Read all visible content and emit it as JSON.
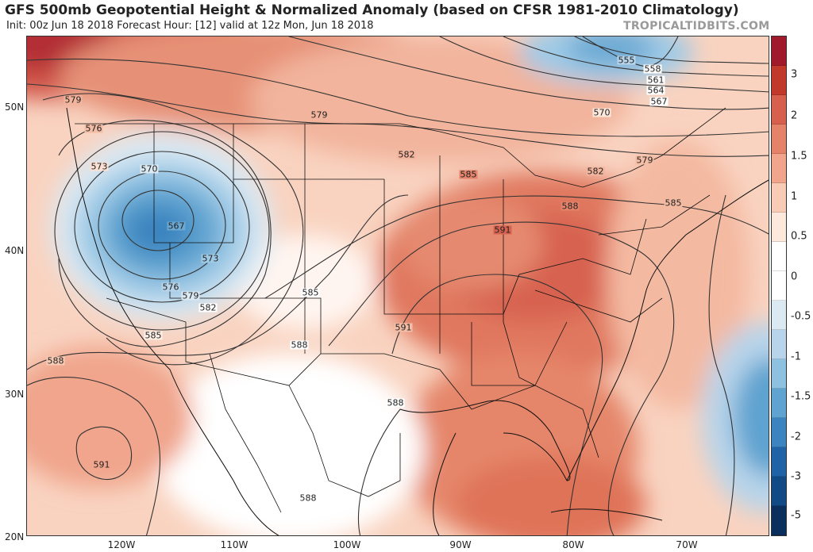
{
  "title": "GFS 500mb Geopotential Height & Normalized Anomaly (based on CFSR 1981-2010 Climatology)",
  "subtitle": "Init: 00z Jun 18 2018   Forecast Hour: [12]   valid at 12z Mon, Jun 18 2018",
  "site": "TROPICALTIDBITS.COM",
  "lat_labels": [
    "50N",
    "40N",
    "30N",
    "20N"
  ],
  "lon_labels": [
    "120W",
    "110W",
    "100W",
    "90W",
    "80W",
    "70W"
  ],
  "colorbar": {
    "labels": [
      "3",
      "2",
      "1.5",
      "1",
      "0.5",
      "0",
      "-0.5",
      "-1",
      "-1.5",
      "-2",
      "-3",
      "-5"
    ],
    "colors": [
      "#a11a2b",
      "#c0392b",
      "#d6604d",
      "#e4826a",
      "#f0a58c",
      "#f8cbb5",
      "#fde8dc",
      "#ffffff",
      "#ffffff",
      "#dbe9f3",
      "#b7d4ea",
      "#8ec0e0",
      "#5fa3d0",
      "#3b84bf",
      "#1f63a6",
      "#124a86",
      "#0a2f5c"
    ]
  },
  "contour_labels": [
    "579",
    "576",
    "573",
    "570",
    "567",
    "573",
    "576",
    "579",
    "582",
    "585",
    "588",
    "591",
    "579",
    "582",
    "585",
    "585",
    "588",
    "591",
    "585",
    "588",
    "591",
    "588",
    "582",
    "579",
    "570",
    "567",
    "564",
    "561",
    "558",
    "555",
    "582",
    "585",
    "588",
    "588"
  ]
}
